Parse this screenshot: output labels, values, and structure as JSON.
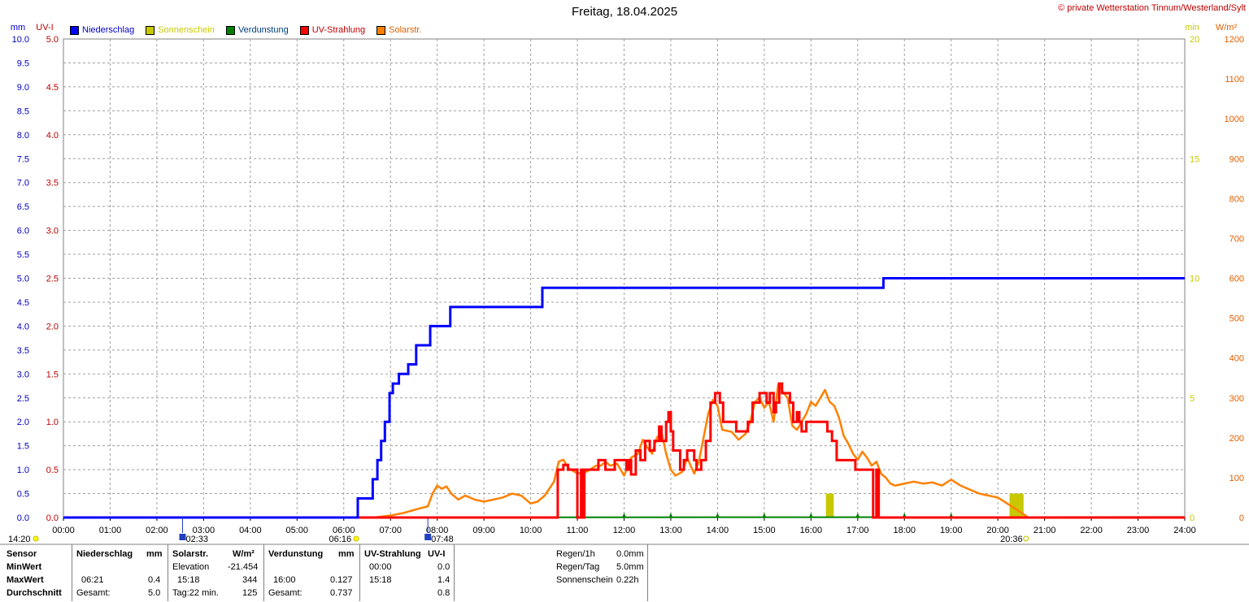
{
  "title": "Freitag, 18.04.2025",
  "copyright": "© private Wetterstation Tinnum/Westerland/Sylt",
  "colors": {
    "niederschlag": "#0000ff",
    "sonnenschein": "#c8c800",
    "verdunstung": "#008000",
    "uv": "#ff0000",
    "solar": "#ff8000"
  },
  "legend": [
    {
      "label": "Niederschlag",
      "color": "#0000ff",
      "text_color": "#0000c8"
    },
    {
      "label": "Sonnenschein",
      "color": "#c8c800",
      "text_color": "#c8c800"
    },
    {
      "label": "Verdunstung",
      "color": "#008000",
      "text_color": "#004080"
    },
    {
      "label": "UV-Strahlung",
      "color": "#ff0000",
      "text_color": "#c00000"
    },
    {
      "label": "Solarstr.",
      "color": "#ff8000",
      "text_color": "#e06000"
    }
  ],
  "chart_data": {
    "type": "line",
    "x_unit": "time",
    "x_ticks": [
      "00:00",
      "01:00",
      "02:00",
      "03:00",
      "04:00",
      "05:00",
      "06:00",
      "07:00",
      "08:00",
      "09:00",
      "10:00",
      "11:00",
      "12:00",
      "13:00",
      "14:00",
      "15:00",
      "16:00",
      "17:00",
      "18:00",
      "19:00",
      "20:00",
      "21:00",
      "22:00",
      "23:00",
      "24:00"
    ],
    "xlim": [
      0,
      24
    ],
    "axes": {
      "mm": {
        "label": "mm",
        "ylim": [
          0,
          10
        ],
        "ticks": [
          "0.0",
          "0.5",
          "1.0",
          "1.5",
          "2.0",
          "2.5",
          "3.0",
          "3.5",
          "4.0",
          "4.5",
          "5.0",
          "5.5",
          "6.0",
          "6.5",
          "7.0",
          "7.5",
          "8.0",
          "8.5",
          "9.0",
          "9.5",
          "10.0"
        ]
      },
      "uv": {
        "label": "UV-I",
        "ylim": [
          0,
          5
        ],
        "ticks": [
          "0.0",
          "0.5",
          "1.0",
          "1.5",
          "2.0",
          "2.5",
          "3.0",
          "3.5",
          "4.0",
          "4.5",
          "5.0"
        ]
      },
      "min": {
        "label": "min",
        "ylim": [
          0,
          20
        ],
        "ticks": [
          "0",
          "5",
          "10",
          "15",
          "20"
        ]
      },
      "wm2": {
        "label": "W/m²",
        "ylim": [
          0,
          1200
        ],
        "ticks": [
          "0",
          "100",
          "200",
          "300",
          "400",
          "500",
          "600",
          "700",
          "800",
          "900",
          "1000",
          "1100",
          "1200"
        ]
      }
    },
    "grid": true,
    "series": [
      {
        "name": "Niederschlag",
        "axis": "mm",
        "step": true,
        "points": [
          [
            0,
            0
          ],
          [
            6.28,
            0
          ],
          [
            6.3,
            0.4
          ],
          [
            6.62,
            0.8
          ],
          [
            6.72,
            1.2
          ],
          [
            6.8,
            1.6
          ],
          [
            6.88,
            2.0
          ],
          [
            6.98,
            2.6
          ],
          [
            7.05,
            2.8
          ],
          [
            7.18,
            3.0
          ],
          [
            7.38,
            3.2
          ],
          [
            7.55,
            3.6
          ],
          [
            7.85,
            4.0
          ],
          [
            8.28,
            4.4
          ],
          [
            10.25,
            4.8
          ],
          [
            17.55,
            5.0
          ],
          [
            24,
            5.0
          ]
        ]
      },
      {
        "name": "UV-Strahlung",
        "axis": "uv",
        "step": true,
        "points": [
          [
            0,
            0
          ],
          [
            10.55,
            0
          ],
          [
            10.58,
            0.5
          ],
          [
            10.65,
            0.5
          ],
          [
            10.7,
            0.55
          ],
          [
            10.8,
            0.5
          ],
          [
            10.98,
            0.5
          ],
          [
            11.0,
            0.0
          ],
          [
            11.06,
            0.0
          ],
          [
            11.08,
            0.5
          ],
          [
            11.12,
            0
          ],
          [
            11.15,
            0.5
          ],
          [
            11.35,
            0.5
          ],
          [
            11.45,
            0.6
          ],
          [
            11.6,
            0.5
          ],
          [
            11.8,
            0.6
          ],
          [
            12.05,
            0.5
          ],
          [
            12.1,
            0.6
          ],
          [
            12.15,
            0.45
          ],
          [
            12.25,
            0.7
          ],
          [
            12.35,
            0.6
          ],
          [
            12.45,
            0.8
          ],
          [
            12.55,
            0.7
          ],
          [
            12.65,
            0.8
          ],
          [
            12.75,
            0.95
          ],
          [
            12.8,
            0.8
          ],
          [
            12.9,
            1.0
          ],
          [
            12.95,
            1.1
          ],
          [
            13.0,
            0.9
          ],
          [
            13.05,
            0.7
          ],
          [
            13.2,
            0.5
          ],
          [
            13.28,
            0.6
          ],
          [
            13.35,
            0.7
          ],
          [
            13.5,
            0.6
          ],
          [
            13.55,
            0.5
          ],
          [
            13.65,
            0.6
          ],
          [
            13.75,
            0.8
          ],
          [
            13.85,
            1.2
          ],
          [
            13.95,
            1.3
          ],
          [
            14.05,
            1.2
          ],
          [
            14.12,
            1.0
          ],
          [
            14.3,
            1.0
          ],
          [
            14.4,
            0.9
          ],
          [
            14.55,
            0.9
          ],
          [
            14.65,
            1.0
          ],
          [
            14.75,
            1.2
          ],
          [
            14.9,
            1.3
          ],
          [
            15.05,
            1.2
          ],
          [
            15.12,
            1.3
          ],
          [
            15.2,
            1.1
          ],
          [
            15.25,
            1.2
          ],
          [
            15.32,
            1.4
          ],
          [
            15.38,
            1.3
          ],
          [
            15.55,
            1.2
          ],
          [
            15.62,
            1.0
          ],
          [
            15.7,
            1.1
          ],
          [
            15.75,
            1.0
          ],
          [
            15.8,
            0.9
          ],
          [
            15.9,
            1.0
          ],
          [
            16.2,
            1.0
          ],
          [
            16.35,
            0.9
          ],
          [
            16.45,
            0.8
          ],
          [
            16.55,
            0.6
          ],
          [
            16.75,
            0.6
          ],
          [
            16.95,
            0.5
          ],
          [
            17.3,
            0.5
          ],
          [
            17.33,
            0
          ],
          [
            17.38,
            0
          ],
          [
            17.4,
            0.5
          ],
          [
            17.45,
            0
          ],
          [
            24,
            0
          ]
        ]
      },
      {
        "name": "Solarstr.",
        "axis": "wm2",
        "points": [
          [
            0,
            0
          ],
          [
            6.65,
            0
          ],
          [
            7.0,
            5
          ],
          [
            7.3,
            12
          ],
          [
            7.6,
            22
          ],
          [
            7.8,
            28
          ],
          [
            7.9,
            60
          ],
          [
            8.0,
            80
          ],
          [
            8.1,
            72
          ],
          [
            8.2,
            78
          ],
          [
            8.3,
            60
          ],
          [
            8.45,
            45
          ],
          [
            8.6,
            55
          ],
          [
            8.8,
            45
          ],
          [
            9.0,
            40
          ],
          [
            9.2,
            45
          ],
          [
            9.4,
            50
          ],
          [
            9.6,
            60
          ],
          [
            9.8,
            55
          ],
          [
            9.9,
            45
          ],
          [
            10.0,
            35
          ],
          [
            10.15,
            40
          ],
          [
            10.3,
            55
          ],
          [
            10.5,
            90
          ],
          [
            10.6,
            140
          ],
          [
            10.7,
            145
          ],
          [
            10.8,
            125
          ],
          [
            11.0,
            110
          ],
          [
            11.2,
            115
          ],
          [
            11.4,
            130
          ],
          [
            11.5,
            130
          ],
          [
            11.6,
            140
          ],
          [
            11.7,
            130
          ],
          [
            11.85,
            135
          ],
          [
            12.0,
            105
          ],
          [
            12.15,
            150
          ],
          [
            12.3,
            160
          ],
          [
            12.4,
            195
          ],
          [
            12.5,
            175
          ],
          [
            12.6,
            160
          ],
          [
            12.7,
            200
          ],
          [
            12.8,
            215
          ],
          [
            12.9,
            160
          ],
          [
            13.0,
            120
          ],
          [
            13.1,
            105
          ],
          [
            13.25,
            115
          ],
          [
            13.35,
            150
          ],
          [
            13.5,
            110
          ],
          [
            13.6,
            140
          ],
          [
            13.7,
            200
          ],
          [
            13.8,
            260
          ],
          [
            13.9,
            295
          ],
          [
            14.0,
            280
          ],
          [
            14.1,
            220
          ],
          [
            14.3,
            215
          ],
          [
            14.45,
            195
          ],
          [
            14.6,
            210
          ],
          [
            14.7,
            240
          ],
          [
            14.8,
            290
          ],
          [
            14.9,
            300
          ],
          [
            15.0,
            275
          ],
          [
            15.1,
            290
          ],
          [
            15.2,
            240
          ],
          [
            15.3,
            335
          ],
          [
            15.4,
            315
          ],
          [
            15.5,
            300
          ],
          [
            15.6,
            230
          ],
          [
            15.7,
            220
          ],
          [
            15.8,
            240
          ],
          [
            15.9,
            260
          ],
          [
            16.0,
            290
          ],
          [
            16.1,
            280
          ],
          [
            16.2,
            300
          ],
          [
            16.3,
            320
          ],
          [
            16.4,
            290
          ],
          [
            16.5,
            280
          ],
          [
            16.6,
            250
          ],
          [
            16.7,
            205
          ],
          [
            16.8,
            185
          ],
          [
            16.9,
            160
          ],
          [
            17.0,
            145
          ],
          [
            17.1,
            165
          ],
          [
            17.2,
            150
          ],
          [
            17.3,
            130
          ],
          [
            17.4,
            140
          ],
          [
            17.5,
            110
          ],
          [
            17.6,
            100
          ],
          [
            17.7,
            85
          ],
          [
            17.8,
            80
          ],
          [
            18.0,
            85
          ],
          [
            18.2,
            90
          ],
          [
            18.4,
            85
          ],
          [
            18.6,
            88
          ],
          [
            18.8,
            80
          ],
          [
            19.0,
            95
          ],
          [
            19.2,
            80
          ],
          [
            19.4,
            70
          ],
          [
            19.6,
            60
          ],
          [
            19.8,
            55
          ],
          [
            20.0,
            50
          ],
          [
            20.2,
            35
          ],
          [
            20.4,
            20
          ],
          [
            20.55,
            8
          ],
          [
            20.65,
            0
          ],
          [
            24,
            0
          ]
        ]
      },
      {
        "name": "Sonnenschein",
        "axis": "min",
        "bars": [
          [
            16.32,
            1.0
          ],
          [
            20.25,
            1.0
          ]
        ]
      },
      {
        "name": "Verdunstung",
        "axis": "mm",
        "points": [
          [
            0,
            0
          ],
          [
            24,
            0.01
          ]
        ],
        "markers": [
          11,
          12,
          13,
          14,
          15,
          16,
          17,
          18,
          19
        ]
      }
    ],
    "sun_events": {
      "sunrise": "06:16",
      "sunset": "20:36",
      "moonrise": "02:33",
      "moonset": "07:48",
      "start": "14:20"
    }
  },
  "stats": {
    "headers": {
      "sensor": "Sensor",
      "minwert": "MinWert",
      "maxwert": "MaxWert",
      "durchschnitt": "Durchschnitt"
    },
    "niederschlag": {
      "title": "Niederschlag",
      "unit": "mm",
      "max_time": "06:21",
      "max_val": "0.4",
      "avg_label": "Gesamt:",
      "avg_val": "5.0"
    },
    "solar": {
      "title": "Solarstr.",
      "unit": "W/m²",
      "min_label": "Elevation",
      "min_val": "-21.454",
      "max_time": "15:18",
      "max_val": "344",
      "avg_label": "Tag:22 min.",
      "avg_val": "125"
    },
    "verdunstung": {
      "title": "Verdunstung",
      "unit": "mm",
      "max_time": "16:00",
      "max_val": "0.127",
      "avg_label": "Gesamt:",
      "avg_val": "0.737"
    },
    "uv": {
      "title": "UV-Strahlung",
      "unit": "UV-I",
      "min_time": "00:00",
      "min_val": "0.0",
      "max_time": "15:18",
      "max_val": "1.4",
      "avg_val": "0.8"
    },
    "regen": [
      {
        "label": "Regen/1h",
        "value": "0.0mm"
      },
      {
        "label": "Regen/Tag",
        "value": "5.0mm"
      },
      {
        "label": "Sonnenschein",
        "value": "0.22h"
      }
    ]
  }
}
